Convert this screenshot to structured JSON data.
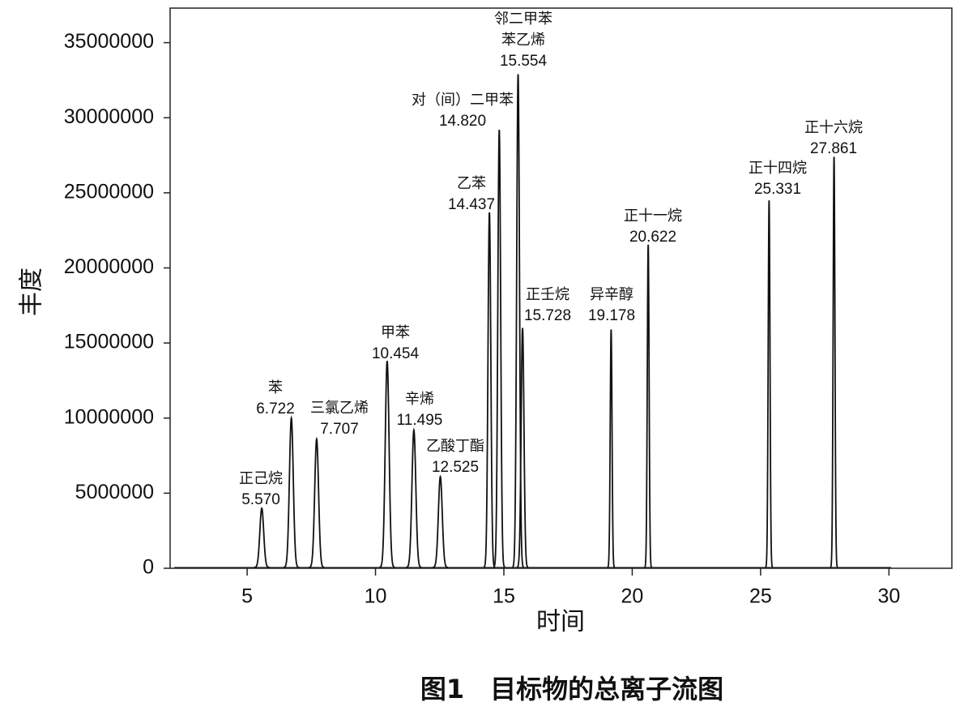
{
  "chart_data": {
    "type": "chromatogram",
    "title": "图1　目标物的总离子流图",
    "x_label": "时间",
    "y_label": "丰度",
    "x": [
      5.57,
      6.722,
      7.707,
      10.454,
      11.495,
      12.525,
      14.437,
      14.82,
      15.554,
      15.728,
      19.178,
      20.622,
      25.331,
      27.861
    ],
    "x_labels": [
      "5.570",
      "6.722",
      "7.707",
      "10.454",
      "11.495",
      "12.525",
      "14.437",
      "14.820",
      "15.554",
      "15.728",
      "19.178",
      "20.622",
      "25.331",
      "27.861"
    ],
    "peak_names": [
      [
        "正己烷"
      ],
      [
        "苯"
      ],
      [
        "三氯乙烯"
      ],
      [
        "甲苯"
      ],
      [
        "辛烯"
      ],
      [
        "乙酸丁酯"
      ],
      [
        "乙苯"
      ],
      [
        "对（间）二甲苯"
      ],
      [
        "邻二甲苯",
        "苯乙烯"
      ],
      [
        "正壬烷"
      ],
      [
        "异辛醇"
      ],
      [
        "正十一烷"
      ],
      [
        "正十四烷"
      ],
      [
        "正十六烷"
      ]
    ],
    "values": [
      4000000,
      10000000,
      8600000,
      13800000,
      9200000,
      6100000,
      23700000,
      29200000,
      32900000,
      16000000,
      15900000,
      21550000,
      24500000,
      27400000
    ],
    "color": "#111111",
    "xlim": [
      2.0,
      32.45
    ],
    "xticks": [
      5,
      10,
      15,
      20,
      25,
      30
    ],
    "ylim": [
      0,
      37300000
    ],
    "yticks": [
      0,
      5000000,
      10000000,
      15000000,
      20000000,
      25000000,
      30000000,
      35000000
    ]
  }
}
